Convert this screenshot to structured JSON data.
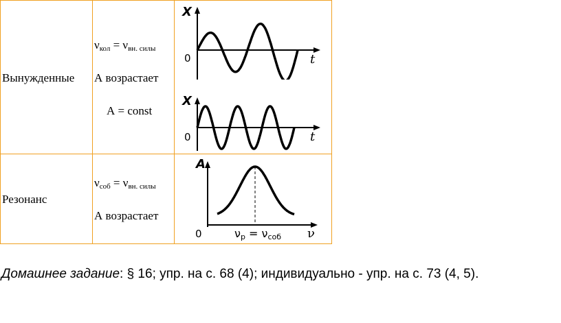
{
  "table": {
    "rows": [
      {
        "type": "Вынужденные",
        "freq_lhs": "ν",
        "freq_lhs_sub": "кол",
        "freq_rhs": "ν",
        "freq_rhs_sub": "вн. силы",
        "amplitude_line": "А возрастает",
        "const_line": "А = const",
        "graph1": {
          "y_axis": "X",
          "x_axis": "t",
          "origin": "0"
        },
        "graph2": {
          "y_axis": "X",
          "x_axis": "t",
          "origin": "0"
        }
      },
      {
        "type": "Резонанс",
        "freq_lhs": "ν",
        "freq_lhs_sub": "соб",
        "freq_rhs": "ν",
        "freq_rhs_sub": "вн. силы",
        "amplitude_line": "А возрастает",
        "graph": {
          "y_axis": "A",
          "x_axis": "ν",
          "origin": "0",
          "resonance_lhs": "ν",
          "resonance_lhs_sub": "р",
          "resonance_rhs": "ν",
          "resonance_rhs_sub": "соб"
        }
      }
    ]
  },
  "homework": {
    "label": "Домашнее задание",
    "text": ": § 16; упр. на с. 68 (4); индивидуально - упр. на с. 73 (4, 5)."
  },
  "colors": {
    "border": "#f0a020"
  }
}
